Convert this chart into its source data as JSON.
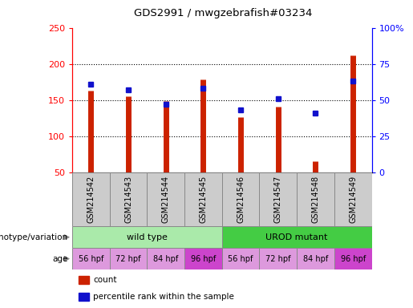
{
  "title": "GDS2991 / mwgzebrafish#03234",
  "samples": [
    "GSM214542",
    "GSM214543",
    "GSM214544",
    "GSM214545",
    "GSM214546",
    "GSM214547",
    "GSM214548",
    "GSM214549"
  ],
  "counts": [
    163,
    155,
    149,
    179,
    126,
    141,
    66,
    212
  ],
  "percentile_ranks": [
    61,
    57,
    47,
    58,
    43,
    51,
    41,
    63
  ],
  "ylim_left": [
    50,
    250
  ],
  "ylim_right": [
    0,
    100
  ],
  "yticks_left": [
    50,
    100,
    150,
    200,
    250
  ],
  "yticks_right": [
    0,
    25,
    50,
    75,
    100
  ],
  "yticklabels_right": [
    "0",
    "25",
    "50",
    "75",
    "100%"
  ],
  "bar_color": "#cc2200",
  "dot_color": "#1111cc",
  "genotype_groups": [
    {
      "label": "wild type",
      "start": 0,
      "end": 4,
      "color": "#aaeaaa"
    },
    {
      "label": "UROD mutant",
      "start": 4,
      "end": 8,
      "color": "#44cc44"
    }
  ],
  "age_labels": [
    "56 hpf",
    "72 hpf",
    "84 hpf",
    "96 hpf",
    "56 hpf",
    "72 hpf",
    "84 hpf",
    "96 hpf"
  ],
  "age_colors": [
    "#dd99dd",
    "#dd99dd",
    "#dd99dd",
    "#cc44cc",
    "#dd99dd",
    "#dd99dd",
    "#dd99dd",
    "#cc44cc"
  ],
  "label_genotype": "genotype/variation",
  "label_age": "age",
  "legend_items": [
    {
      "color": "#cc2200",
      "label": "count"
    },
    {
      "color": "#1111cc",
      "label": "percentile rank within the sample"
    }
  ],
  "sample_cell_color": "#cccccc",
  "sample_cell_edge": "#888888"
}
